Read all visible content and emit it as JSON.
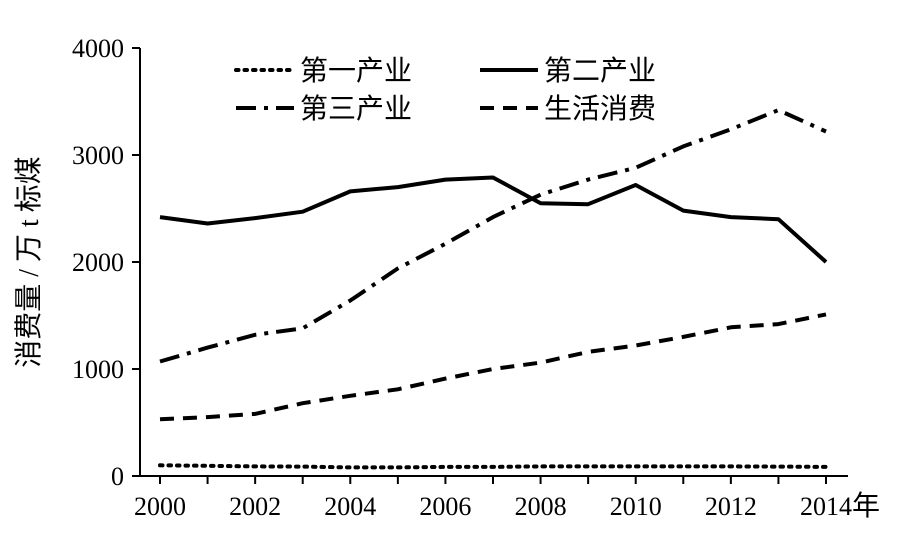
{
  "chart_data": {
    "type": "line",
    "title": "",
    "ylabel": "消费量 / 万 t 标煤",
    "xlabel": "年",
    "x": [
      2000,
      2001,
      2002,
      2003,
      2004,
      2005,
      2006,
      2007,
      2008,
      2009,
      2010,
      2011,
      2012,
      2013,
      2014
    ],
    "xticks": [
      "2000",
      "2002",
      "2004",
      "2006",
      "2008",
      "2010",
      "2012",
      "2014"
    ],
    "yticks": [
      "0",
      "1000",
      "2000",
      "3000",
      "4000"
    ],
    "xlim": [
      2000,
      2014
    ],
    "ylim": [
      0,
      4000
    ],
    "grid": false,
    "legend_position": "top",
    "series": [
      {
        "name": "第一产业",
        "style": "dotted",
        "values": [
          100,
          95,
          90,
          88,
          80,
          80,
          85,
          85,
          90,
          90,
          90,
          90,
          90,
          88,
          85
        ]
      },
      {
        "name": "第二产业",
        "style": "solid",
        "values": [
          2420,
          2360,
          2410,
          2470,
          2660,
          2700,
          2770,
          2790,
          2550,
          2540,
          2720,
          2480,
          2420,
          2400,
          2000
        ]
      },
      {
        "name": "第三产业",
        "style": "dash-dot",
        "values": [
          1070,
          1200,
          1320,
          1380,
          1640,
          1940,
          2170,
          2420,
          2630,
          2770,
          2880,
          3080,
          3240,
          3420,
          3220
        ]
      },
      {
        "name": "生活消费",
        "style": "dashed",
        "values": [
          530,
          550,
          580,
          680,
          750,
          810,
          910,
          1000,
          1060,
          1160,
          1220,
          1300,
          1390,
          1420,
          1510
        ]
      }
    ]
  }
}
